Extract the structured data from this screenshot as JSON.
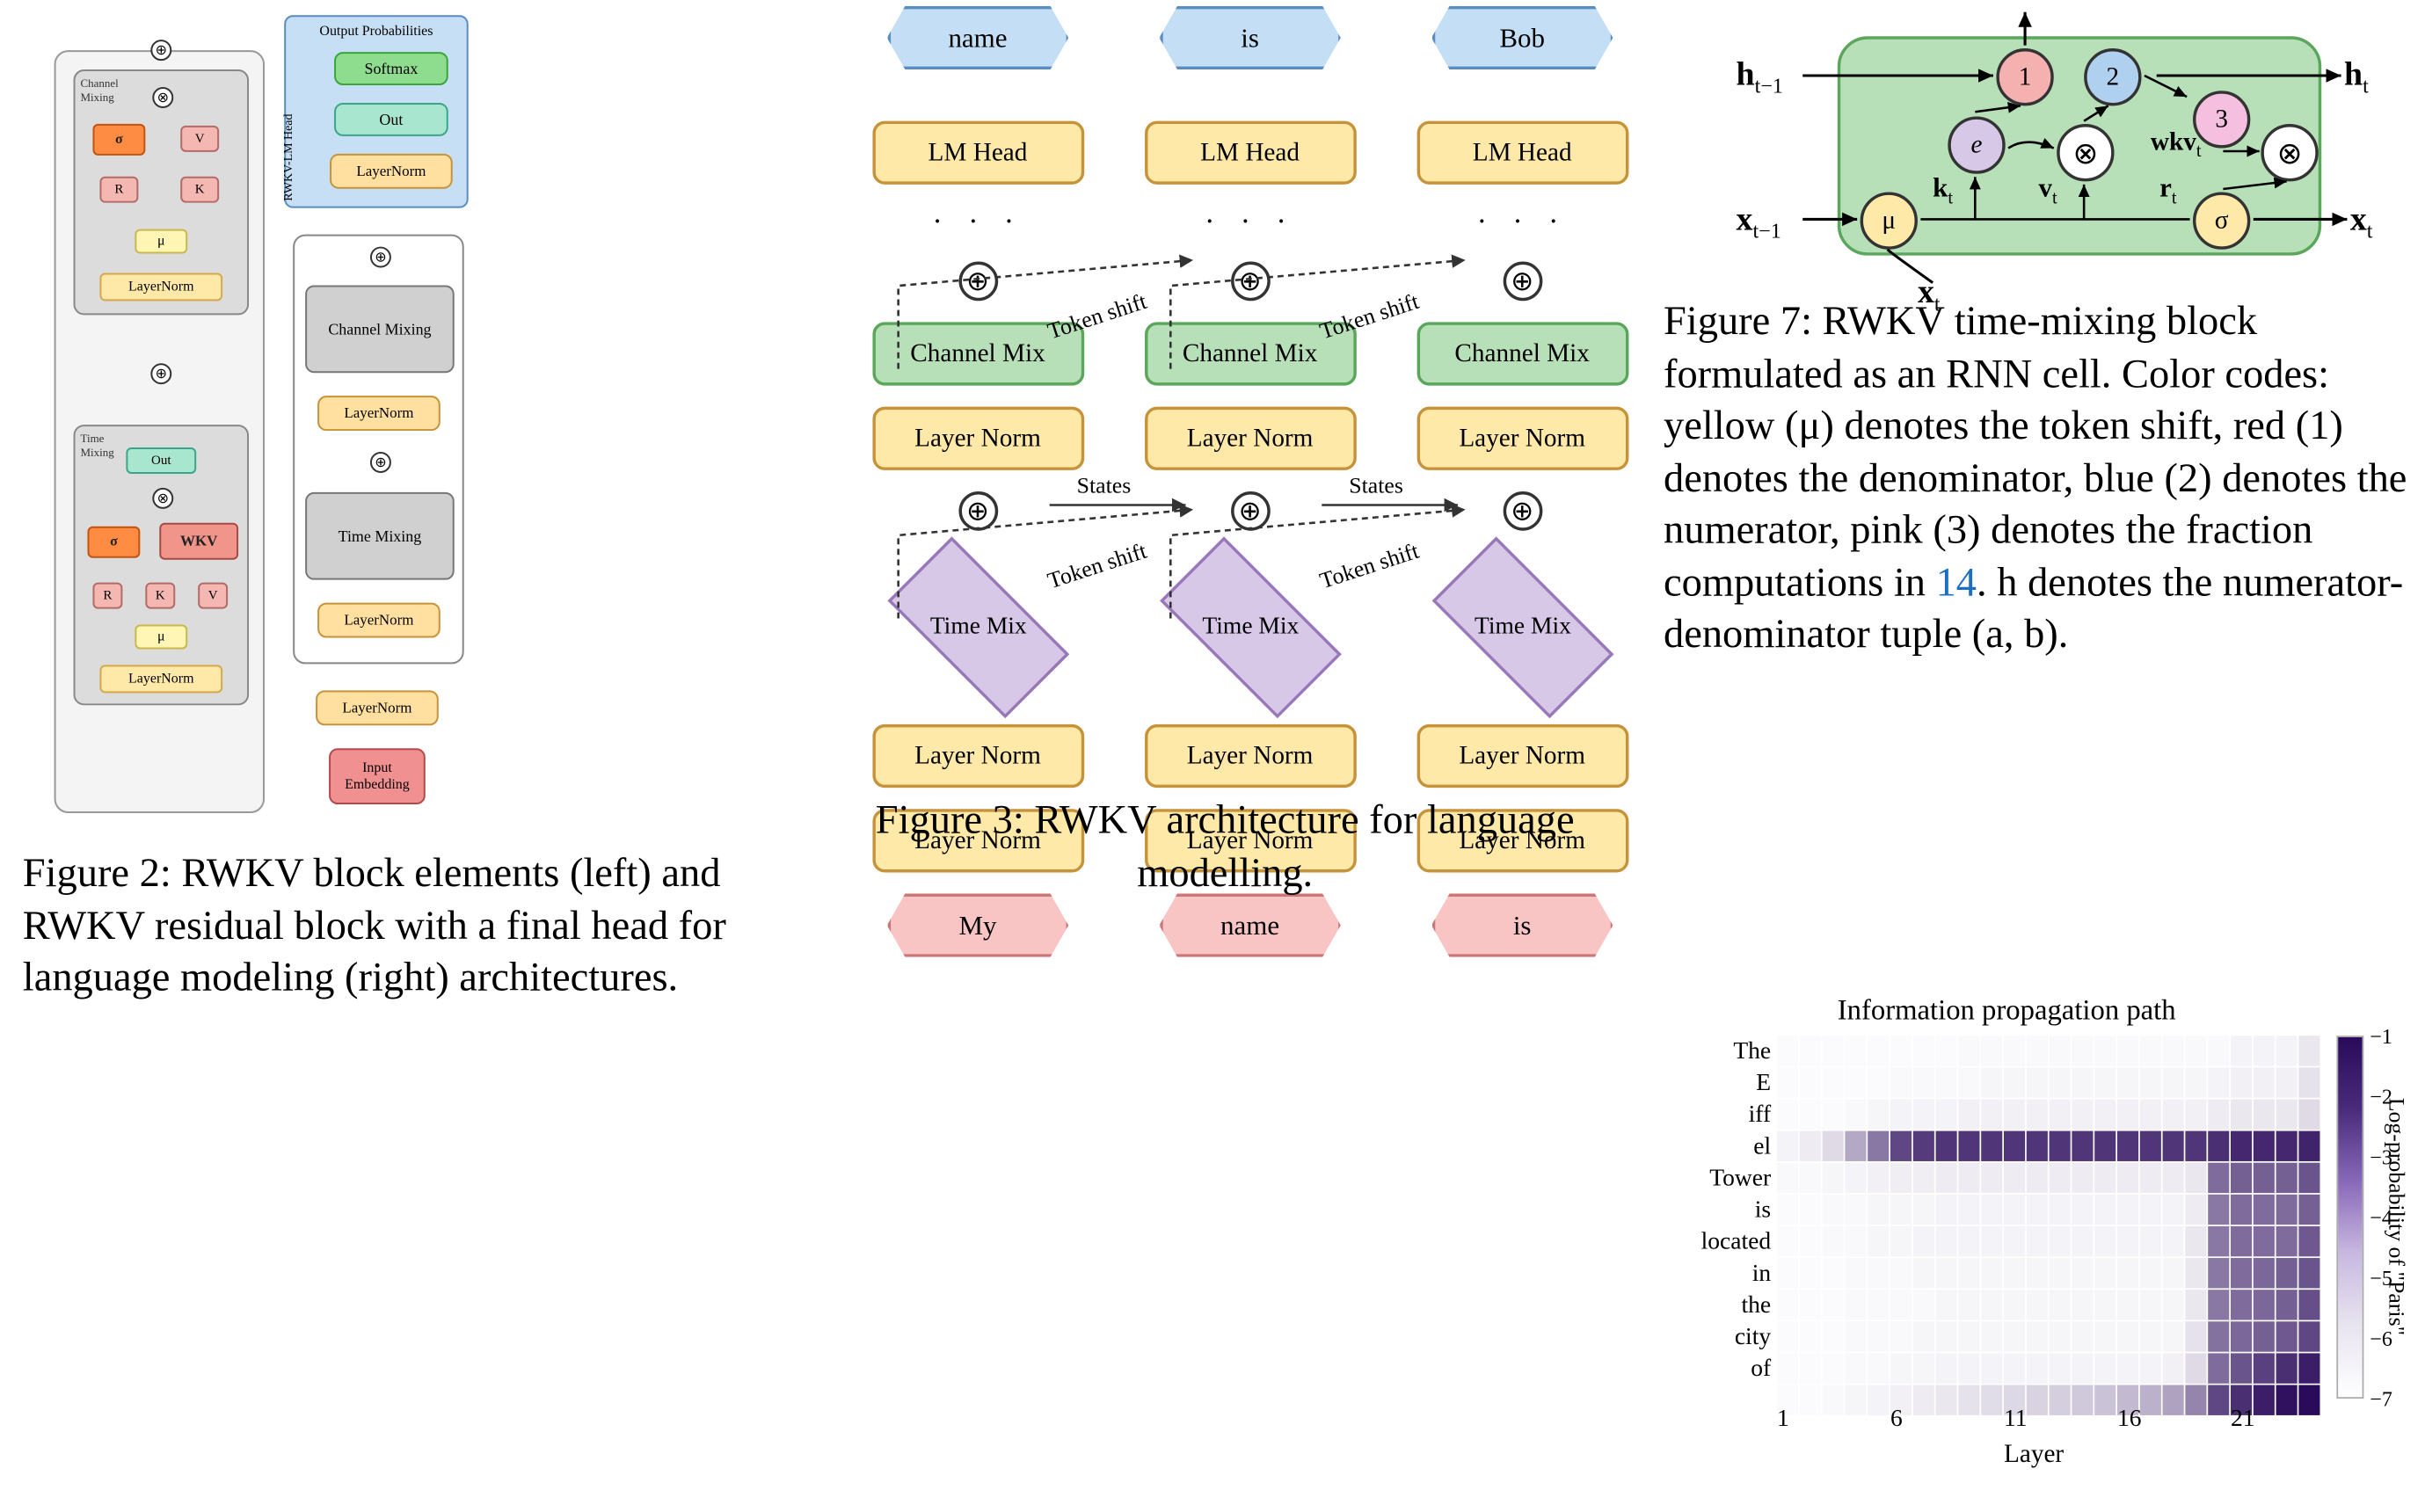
{
  "figure2": {
    "caption_prefix": "Figure 2:  ",
    "caption_text": "RWKV block elements (left) and RWKV residual block with a final head for language modeling (right) architectures.",
    "left": {
      "channel_mixing_label": "Channel Mixing",
      "time_mixing_label": "Time Mixing",
      "layernorm": "LayerNorm",
      "mu": "μ",
      "sigma": "σ",
      "R": "R",
      "K": "K",
      "V": "V",
      "WKV": "WKV",
      "Out": "Out",
      "op_plus": "⊕",
      "op_times": "⊗"
    },
    "right": {
      "head_title": "Output Probabilities",
      "head_side_label": "RWKV-LM Head",
      "softmax": "Softmax",
      "out": "Out",
      "layernorm": "LayerNorm",
      "channel_mixing": "Channel Mixing",
      "time_mixing": "Time Mixing",
      "input_embedding": "Input Embedding"
    },
    "colors": {
      "layernorm": "#ffe9a8",
      "mu": "#fff6b5",
      "sigma": "#ff8c42",
      "rkv": "#f5b7b1",
      "wkv": "#f1948a",
      "out": "#a8e6cf",
      "softmax": "#8edc8e",
      "input_embedding": "#f19090",
      "mixing_block": "#d0d0d0",
      "head_bg": "#c6dff5",
      "outer_bg": "#f4f4f4",
      "inner_bg": "#dcdcdc"
    }
  },
  "figure3": {
    "caption_prefix": "Figure 3: ",
    "caption_text": "RWKV architecture for language modelling.",
    "inputs": [
      "My",
      "name",
      "is"
    ],
    "outputs": [
      "name",
      "is",
      "Bob"
    ],
    "box_labels": {
      "layer_norm": "Layer Norm",
      "channel_mix": "Channel Mix",
      "time_mix": "Time Mix",
      "lm_head": "LM Head",
      "ellipsis": "· · ·"
    },
    "edge_labels": {
      "token_shift": "Token shift",
      "states": "States"
    },
    "colors": {
      "input_hex": "#f8c4c4",
      "output_hex": "#c4dff5",
      "layernorm": "#ffe9a8",
      "channel_mix": "#b8e0b8",
      "time_mix": "#d8c8e8",
      "lm_head": "#ffe9a8"
    }
  },
  "figure7": {
    "caption_prefix": "Figure 7: ",
    "caption_text_1": "RWKV time-mixing block formulated as an RNN cell. Color codes: yellow (μ) denotes the token shift, red (1) denotes the denominator, blue (2) denotes the numerator, pink (3) denotes the fraction computations in ",
    "caption_ref": "14",
    "caption_text_2": ". h denotes the numerator-denominator tuple (a, b).",
    "labels": {
      "h_prev": "h",
      "h_prev_sub": "t−1",
      "h_next": "h",
      "h_next_sub": "t",
      "x_prev": "x",
      "x_prev_sub": "t−1",
      "x_next": "x",
      "x_next_sub": "t",
      "x_in": "x",
      "x_in_sub": "t",
      "mu": "μ",
      "sigma": "σ",
      "e": "e",
      "one": "1",
      "two": "2",
      "three": "3",
      "kt": "k",
      "kt_sub": "t",
      "vt": "v",
      "vt_sub": "t",
      "rt": "r",
      "rt_sub": "t",
      "wkv": "wkv",
      "wkv_sub": "t",
      "otimes": "⊗"
    },
    "colors": {
      "cell_bg": "#b8e0b8",
      "mu": "#ffe9a8",
      "sigma": "#ffe9a8",
      "e": "#d8c8e8",
      "one": "#f5b0b0",
      "two": "#b0d0f0",
      "three": "#f5c0e0",
      "link_ref": "#1a6fc4"
    }
  },
  "heatmap": {
    "title": "Information propagation path",
    "xlabel": "Layer",
    "ylabel_cbar": "Log-probability of \"Paris\"",
    "ytick_labels": [
      "The",
      "E",
      "iff",
      "el",
      "Tower",
      "is",
      "located",
      "in",
      "the",
      "city",
      "of",
      ""
    ],
    "xtick_positions": [
      1,
      6,
      11,
      16,
      21
    ],
    "n_layers": 24,
    "n_tokens": 12,
    "cbar_range": [
      -7,
      -1
    ],
    "cbar_ticks": [
      -1,
      -2,
      -3,
      -4,
      -5,
      -6,
      -7
    ],
    "colormap_low": "#ffffff",
    "colormap_high": "#2a0a5a",
    "data_rows": [
      [
        0.02,
        0.02,
        0.02,
        0.02,
        0.02,
        0.02,
        0.02,
        0.02,
        0.03,
        0.03,
        0.03,
        0.03,
        0.03,
        0.03,
        0.03,
        0.03,
        0.03,
        0.03,
        0.03,
        0.03,
        0.05,
        0.05,
        0.05,
        0.1
      ],
      [
        0.02,
        0.02,
        0.02,
        0.02,
        0.02,
        0.03,
        0.03,
        0.03,
        0.03,
        0.04,
        0.04,
        0.04,
        0.04,
        0.04,
        0.04,
        0.04,
        0.04,
        0.04,
        0.04,
        0.05,
        0.06,
        0.06,
        0.06,
        0.12
      ],
      [
        0.02,
        0.02,
        0.02,
        0.03,
        0.04,
        0.05,
        0.05,
        0.05,
        0.06,
        0.06,
        0.06,
        0.06,
        0.06,
        0.06,
        0.06,
        0.06,
        0.06,
        0.06,
        0.06,
        0.08,
        0.1,
        0.1,
        0.1,
        0.15
      ],
      [
        0.05,
        0.08,
        0.15,
        0.35,
        0.55,
        0.75,
        0.8,
        0.82,
        0.82,
        0.82,
        0.82,
        0.82,
        0.82,
        0.82,
        0.82,
        0.82,
        0.82,
        0.82,
        0.82,
        0.85,
        0.88,
        0.88,
        0.88,
        0.9
      ],
      [
        0.03,
        0.03,
        0.04,
        0.05,
        0.06,
        0.07,
        0.07,
        0.08,
        0.08,
        0.08,
        0.08,
        0.08,
        0.08,
        0.08,
        0.08,
        0.08,
        0.08,
        0.08,
        0.1,
        0.6,
        0.65,
        0.65,
        0.65,
        0.7
      ],
      [
        0.02,
        0.02,
        0.03,
        0.03,
        0.04,
        0.04,
        0.04,
        0.05,
        0.05,
        0.05,
        0.05,
        0.05,
        0.05,
        0.05,
        0.05,
        0.05,
        0.05,
        0.05,
        0.08,
        0.55,
        0.6,
        0.6,
        0.6,
        0.65
      ],
      [
        0.02,
        0.02,
        0.03,
        0.03,
        0.04,
        0.04,
        0.05,
        0.05,
        0.05,
        0.05,
        0.05,
        0.05,
        0.05,
        0.05,
        0.05,
        0.05,
        0.05,
        0.05,
        0.1,
        0.55,
        0.6,
        0.6,
        0.6,
        0.68
      ],
      [
        0.02,
        0.02,
        0.02,
        0.03,
        0.03,
        0.03,
        0.04,
        0.04,
        0.04,
        0.04,
        0.04,
        0.04,
        0.04,
        0.04,
        0.04,
        0.04,
        0.04,
        0.04,
        0.1,
        0.55,
        0.6,
        0.62,
        0.65,
        0.7
      ],
      [
        0.02,
        0.02,
        0.02,
        0.03,
        0.03,
        0.03,
        0.03,
        0.04,
        0.04,
        0.04,
        0.04,
        0.04,
        0.04,
        0.04,
        0.04,
        0.04,
        0.04,
        0.04,
        0.1,
        0.55,
        0.6,
        0.62,
        0.65,
        0.72
      ],
      [
        0.02,
        0.02,
        0.02,
        0.03,
        0.03,
        0.03,
        0.04,
        0.04,
        0.04,
        0.04,
        0.04,
        0.04,
        0.04,
        0.04,
        0.04,
        0.04,
        0.04,
        0.04,
        0.12,
        0.58,
        0.62,
        0.65,
        0.68,
        0.75
      ],
      [
        0.02,
        0.02,
        0.02,
        0.03,
        0.03,
        0.04,
        0.04,
        0.05,
        0.05,
        0.05,
        0.05,
        0.05,
        0.05,
        0.05,
        0.05,
        0.05,
        0.05,
        0.06,
        0.15,
        0.6,
        0.7,
        0.78,
        0.85,
        0.92
      ],
      [
        0.02,
        0.02,
        0.03,
        0.04,
        0.05,
        0.06,
        0.08,
        0.1,
        0.12,
        0.14,
        0.16,
        0.18,
        0.2,
        0.22,
        0.25,
        0.28,
        0.32,
        0.38,
        0.5,
        0.75,
        0.85,
        0.92,
        0.97,
        1.0
      ]
    ]
  },
  "scale_note": "All coordinates are at 0.58× of original 2758×1168 canvas; body uses transform scale."
}
